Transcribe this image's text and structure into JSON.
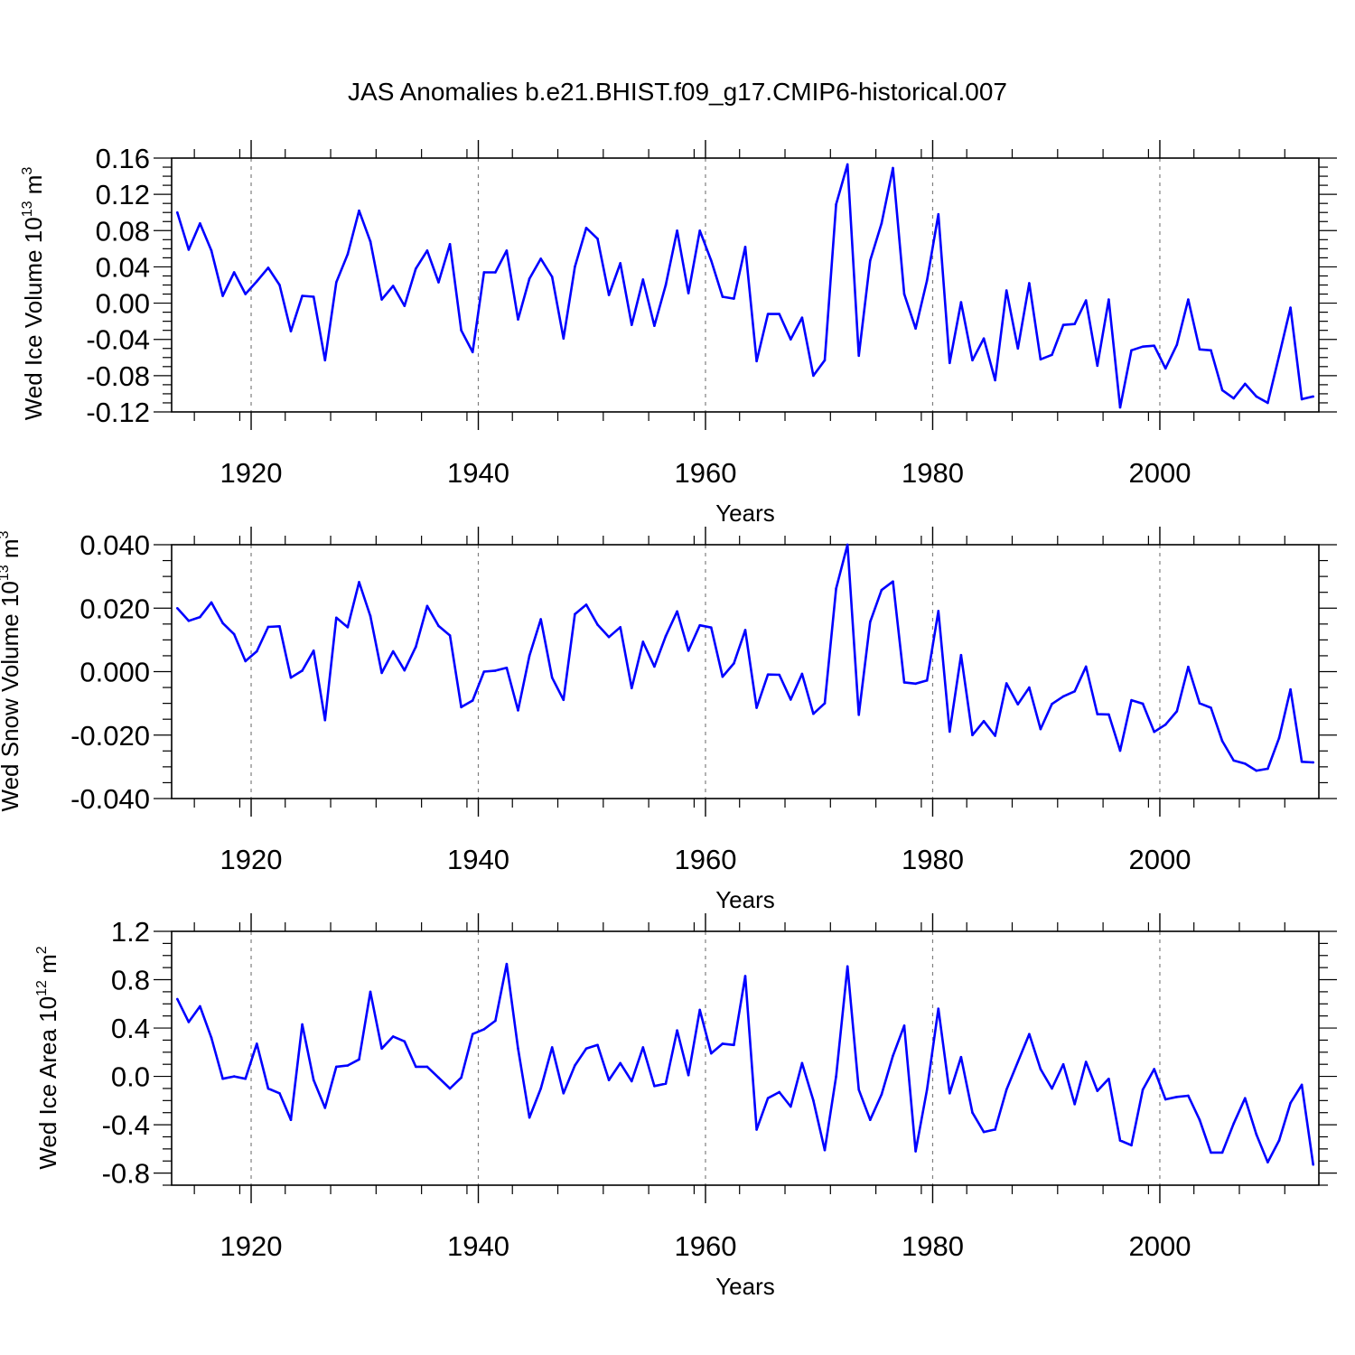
{
  "title": "JAS Anomalies b.e21.BHIST.f09_g17.CMIP6-historical.007",
  "colors": {
    "series": "#0000ff",
    "axis": "#000000",
    "grid": "#7f7f7f"
  },
  "chart_data": [
    {
      "type": "line",
      "ylabel_main": "Wed Ice Volume 10",
      "ylabel_exp": "13",
      "ylabel_unit": " m",
      "ylabel_unit_exp": "3",
      "xlabel": "Years",
      "xlim": [
        1913,
        2014
      ],
      "ylim": [
        -0.12,
        0.16
      ],
      "yticks": [
        "0.16",
        "0.12",
        "0.08",
        "0.04",
        "0.00",
        "-0.04",
        "-0.08",
        "-0.12"
      ],
      "xticks": [
        "1920",
        "1940",
        "1960",
        "1980",
        "2000"
      ],
      "x_start": 1913,
      "values": [
        0.1,
        0.059,
        0.088,
        0.058,
        0.008,
        0.034,
        0.01,
        0.024,
        0.039,
        0.02,
        -0.031,
        0.008,
        0.007,
        -0.063,
        0.023,
        0.054,
        0.102,
        0.068,
        0.004,
        0.019,
        -0.003,
        0.038,
        0.058,
        0.023,
        0.065,
        -0.03,
        -0.054,
        0.034,
        0.034,
        0.058,
        -0.018,
        0.027,
        0.049,
        0.029,
        -0.039,
        0.04,
        0.083,
        0.071,
        0.009,
        0.044,
        -0.024,
        0.026,
        -0.025,
        0.02,
        0.08,
        0.011,
        0.08,
        0.047,
        0.007,
        0.005,
        0.062,
        -0.064,
        -0.012,
        -0.012,
        -0.04,
        -0.016,
        -0.08,
        -0.063,
        0.109,
        0.153,
        -0.058,
        0.047,
        0.088,
        0.149,
        0.01,
        -0.028,
        0.025,
        0.098,
        -0.066,
        0.001,
        -0.063,
        -0.039,
        -0.085,
        0.014,
        -0.05,
        0.022,
        -0.062,
        -0.057,
        -0.024,
        -0.023,
        0.003,
        -0.069,
        0.004,
        -0.115,
        -0.052,
        -0.048,
        -0.047,
        -0.072,
        -0.046,
        0.004,
        -0.051,
        -0.052,
        -0.096,
        -0.105,
        -0.089,
        -0.103,
        -0.11,
        -0.058,
        -0.005,
        -0.106,
        -0.103
      ]
    },
    {
      "type": "line",
      "ylabel_main": "Wed Snow Volume 10",
      "ylabel_exp": "13",
      "ylabel_unit": " m",
      "ylabel_unit_exp": "3",
      "xlabel": "Years",
      "xlim": [
        1913,
        2014
      ],
      "ylim": [
        -0.04,
        0.04
      ],
      "yticks": [
        "0.040",
        "0.020",
        "0.000",
        "-0.020",
        "-0.040"
      ],
      "xticks": [
        "1920",
        "1940",
        "1960",
        "1980",
        "2000"
      ],
      "x_start": 1913,
      "values": [
        0.02,
        0.016,
        0.0172,
        0.0218,
        0.0153,
        0.0118,
        0.0033,
        0.0064,
        0.0141,
        0.0143,
        -0.0019,
        0.0003,
        0.0066,
        -0.0153,
        0.017,
        0.014,
        0.0282,
        0.0175,
        -0.0004,
        0.0064,
        0.0004,
        0.0078,
        0.0207,
        0.0144,
        0.0114,
        -0.0112,
        -0.0091,
        0.0,
        0.0003,
        0.0012,
        -0.0122,
        0.005,
        0.0165,
        -0.0019,
        -0.0089,
        0.0181,
        0.0211,
        0.0148,
        0.0109,
        0.014,
        -0.0052,
        0.0094,
        0.0016,
        0.0112,
        0.019,
        0.0066,
        0.0146,
        0.0139,
        -0.0016,
        0.0026,
        0.0131,
        -0.0114,
        -0.0009,
        -0.001,
        -0.0088,
        -0.0007,
        -0.0133,
        -0.01,
        0.0262,
        0.04,
        -0.0136,
        0.0157,
        0.0257,
        0.0284,
        -0.0034,
        -0.0038,
        -0.0028,
        0.0191,
        -0.0189,
        0.0052,
        -0.02,
        -0.0156,
        -0.0202,
        -0.0037,
        -0.0103,
        -0.005,
        -0.0181,
        -0.0102,
        -0.0078,
        -0.0062,
        0.0016,
        -0.0134,
        -0.0135,
        -0.0249,
        -0.009,
        -0.0101,
        -0.019,
        -0.0167,
        -0.0125,
        0.0015,
        -0.01,
        -0.0114,
        -0.0219,
        -0.028,
        -0.029,
        -0.0312,
        -0.0306,
        -0.0209,
        -0.0056,
        -0.0284,
        -0.0286
      ]
    },
    {
      "type": "line",
      "ylabel_main": "Wed Ice Area 10",
      "ylabel_exp": "12",
      "ylabel_unit": " m",
      "ylabel_unit_exp": "2",
      "xlabel": "Years",
      "xlim": [
        1913,
        2014
      ],
      "ylim": [
        -0.9,
        1.2
      ],
      "yticks": [
        "1.2",
        "0.8",
        "0.4",
        "0.0",
        "-0.4",
        "-0.8"
      ],
      "xticks": [
        "1920",
        "1940",
        "1960",
        "1980",
        "2000"
      ],
      "x_start": 1913,
      "values": [
        0.64,
        0.45,
        0.58,
        0.32,
        -0.02,
        0.0,
        -0.02,
        0.27,
        -0.1,
        -0.14,
        -0.36,
        0.43,
        -0.03,
        -0.26,
        0.08,
        0.09,
        0.14,
        0.7,
        0.23,
        0.33,
        0.29,
        0.08,
        0.08,
        -0.01,
        -0.1,
        -0.01,
        0.35,
        0.39,
        0.46,
        0.93,
        0.23,
        -0.34,
        -0.1,
        0.24,
        -0.14,
        0.09,
        0.23,
        0.26,
        -0.03,
        0.11,
        -0.04,
        0.24,
        -0.08,
        -0.06,
        0.38,
        0.01,
        0.55,
        0.19,
        0.27,
        0.26,
        0.83,
        -0.44,
        -0.18,
        -0.13,
        -0.25,
        0.11,
        -0.2,
        -0.61,
        0.0,
        0.91,
        -0.11,
        -0.36,
        -0.15,
        0.17,
        0.42,
        -0.62,
        -0.11,
        0.56,
        -0.14,
        0.16,
        -0.3,
        -0.46,
        -0.44,
        -0.11,
        0.12,
        0.35,
        0.06,
        -0.1,
        0.1,
        -0.23,
        0.12,
        -0.12,
        -0.02,
        -0.53,
        -0.57,
        -0.11,
        0.06,
        -0.19,
        -0.17,
        -0.16,
        -0.36,
        -0.63,
        -0.63,
        -0.39,
        -0.18,
        -0.48,
        -0.71,
        -0.53,
        -0.22,
        -0.07,
        -0.73
      ]
    }
  ]
}
